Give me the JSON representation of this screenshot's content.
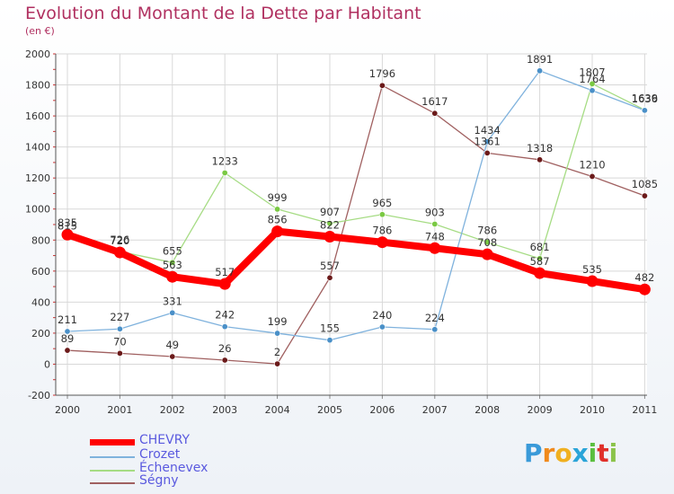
{
  "title": "Evolution du Montant de la Dette par Habitant",
  "subtitle": "(en €)",
  "logo": {
    "text": "Proxiti",
    "letter_colors": [
      "#3a9ad9",
      "#f08a1c",
      "#f0b020",
      "#2aa4d8",
      "#5abf3f",
      "#e0302a",
      "#8bc34a"
    ]
  },
  "chart_data": {
    "type": "line",
    "x": [
      "2000",
      "2001",
      "2002",
      "2003",
      "2004",
      "2005",
      "2006",
      "2007",
      "2008",
      "2009",
      "2010",
      "2011"
    ],
    "ylim": [
      -200,
      2000
    ],
    "yticks": [
      "-200",
      "0",
      "200",
      "400",
      "600",
      "800",
      "1000",
      "1200",
      "1400",
      "1600",
      "1800",
      "2000"
    ],
    "grid": true,
    "legend_position": "bottom-left",
    "series": [
      {
        "name": "Ségny",
        "color": "#6b1a1a",
        "line_color": "#a06060",
        "values": [
          89,
          70,
          49,
          26,
          2,
          557,
          1796,
          1617,
          1361,
          1318,
          1210,
          1085
        ],
        "labels": [
          "89",
          "70",
          "49",
          "26",
          "2",
          "557",
          "1796",
          "1617",
          "1361",
          "1318",
          "1210",
          "1085"
        ]
      },
      {
        "name": "Échenevex",
        "color": "#7ac943",
        "line_color": "#a6dc84",
        "values": [
          815,
          726,
          655,
          1233,
          999,
          907,
          965,
          903,
          786,
          681,
          1807,
          1639
        ],
        "labels": [
          "815",
          "726",
          "655",
          "1233",
          "999",
          "907",
          "965",
          "903",
          "786",
          "681",
          "1807",
          "1639"
        ]
      },
      {
        "name": "Crozet",
        "color": "#4a90c8",
        "line_color": "#7fb2dd",
        "values": [
          211,
          227,
          331,
          242,
          199,
          155,
          240,
          224,
          1434,
          1891,
          1764,
          1636
        ],
        "labels": [
          "211",
          "227",
          "331",
          "242",
          "199",
          "155",
          "240",
          "224",
          "1434",
          "1891",
          "1764",
          "1636"
        ]
      },
      {
        "name": "CHEVRY",
        "color": "#ff0000",
        "line_color": "#ff0000",
        "values": [
          835,
          720,
          563,
          517,
          856,
          822,
          786,
          748,
          708,
          587,
          535,
          482
        ],
        "labels": [
          "835",
          "720",
          "563",
          "517",
          "856",
          "822",
          "786",
          "748",
          "708",
          "587",
          "535",
          "482"
        ]
      }
    ]
  },
  "legend": [
    {
      "label": "CHEVRY",
      "color": "#ff0000"
    },
    {
      "label": "Crozet",
      "color": "#7fb2dd"
    },
    {
      "label": "Échenevex",
      "color": "#a6dc84"
    },
    {
      "label": "Ségny",
      "color": "#a06060"
    }
  ]
}
